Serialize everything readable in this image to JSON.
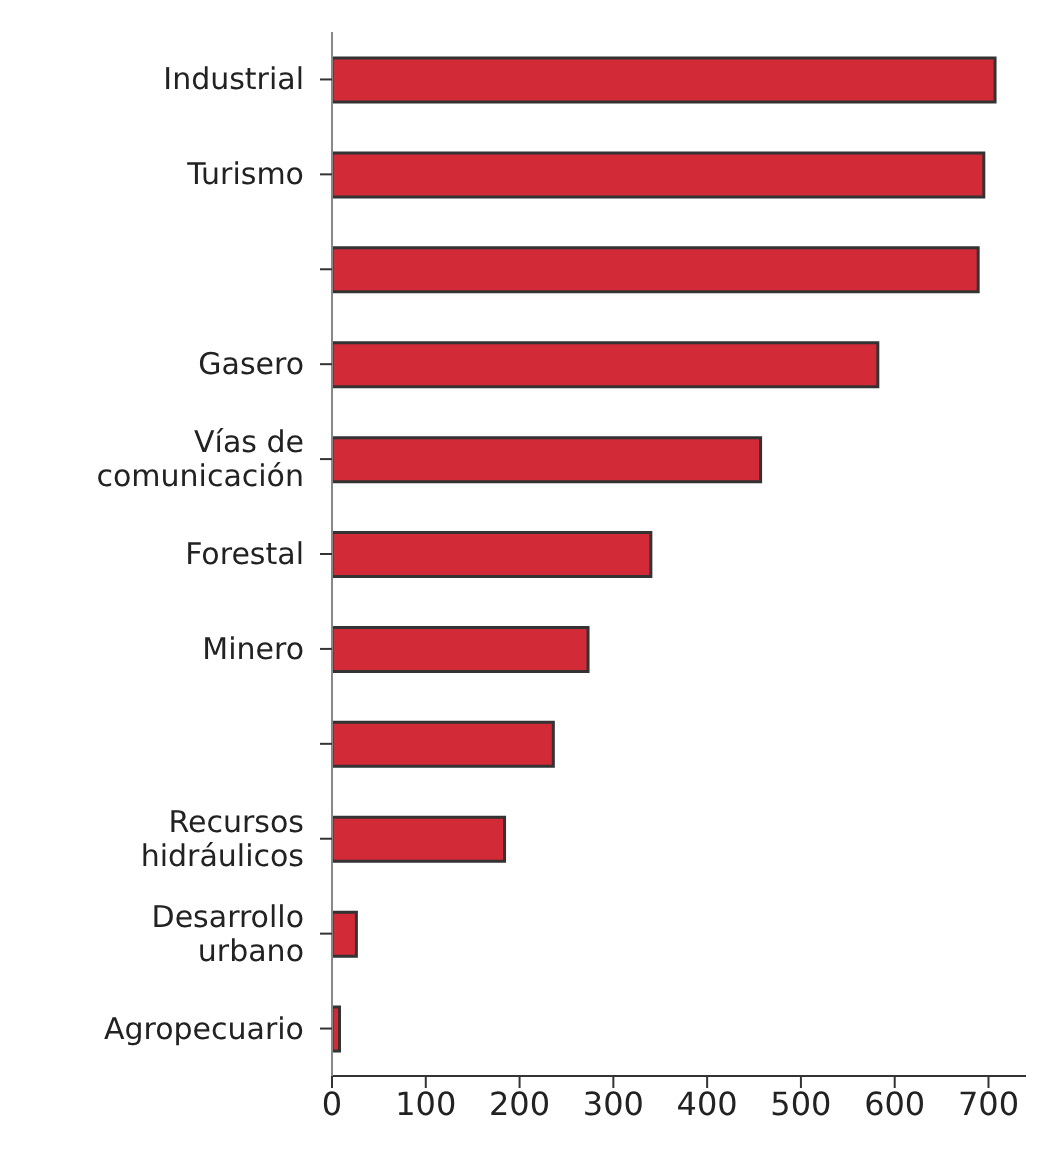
{
  "chart_data": {
    "type": "bar",
    "orientation": "horizontal",
    "categories": [
      "Industrial",
      "Turismo",
      null,
      "Gasero",
      "Vías de\ncomunicación",
      "Forestal",
      "Minero",
      null,
      "Recursos\nhidráulicos",
      "Desarrollo\nurbano",
      "Agropecuario"
    ],
    "values": [
      707,
      695,
      689,
      582,
      457,
      340,
      273,
      236,
      184,
      26,
      8
    ],
    "color": "#d22a37",
    "xlim": [
      0,
      740
    ],
    "xticks": [
      0,
      100,
      200,
      300,
      400,
      500,
      600,
      700
    ],
    "grid": false
  }
}
